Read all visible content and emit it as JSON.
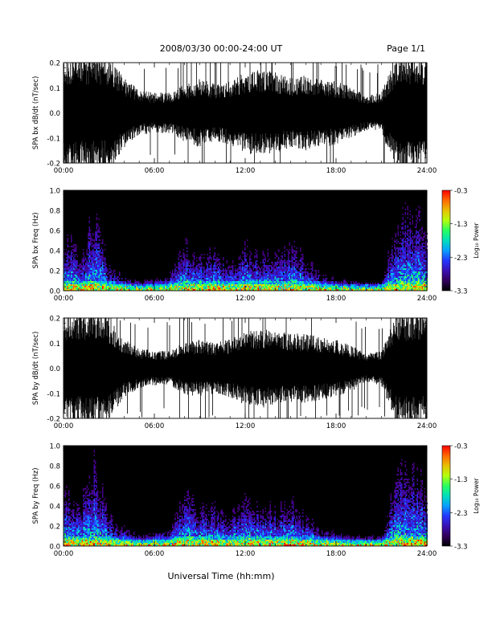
{
  "header": {
    "title": "2008/03/30   00:00-24:00 UT",
    "page": "Page 1/1"
  },
  "footer": {
    "xlabel": "Universal Time (hh:mm)"
  },
  "colors": {
    "background": "#ffffff",
    "trace": "#000000",
    "spectrogram_bg": "#000000"
  },
  "chart_data": [
    {
      "type": "line",
      "panel": "bx-waveform",
      "ylabel": "SPA bx dB/dt (nT/sec)",
      "xlim": [
        "00:00",
        "24:00"
      ],
      "x_ticks": [
        "00:00",
        "06:00",
        "12:00",
        "18:00",
        "24:00"
      ],
      "ylim": [
        -0.2,
        0.2
      ],
      "y_ticks": [
        "-0.2",
        "-0.1",
        "0.0",
        "0.1",
        "0.2"
      ],
      "x_hours": [
        0,
        1,
        2,
        3,
        4,
        5,
        6,
        7,
        8,
        9,
        10,
        11,
        12,
        13,
        14,
        15,
        16,
        17,
        18,
        19,
        20,
        21,
        22,
        23,
        24
      ],
      "amplitude": [
        0.2,
        0.2,
        0.2,
        0.2,
        0.12,
        0.08,
        0.07,
        0.07,
        0.1,
        0.12,
        0.1,
        0.11,
        0.14,
        0.15,
        0.14,
        0.12,
        0.13,
        0.12,
        0.11,
        0.09,
        0.06,
        0.07,
        0.2,
        0.2,
        0.2
      ]
    },
    {
      "type": "heatmap",
      "panel": "bx-spectrogram",
      "ylabel": "SPA bx Freq (Hz)",
      "xlim": [
        "00:00",
        "24:00"
      ],
      "x_ticks": [
        "00:00",
        "06:00",
        "12:00",
        "18:00",
        "24:00"
      ],
      "ylim": [
        0.0,
        1.0
      ],
      "y_ticks": [
        "0.0",
        "0.2",
        "0.4",
        "0.6",
        "0.8",
        "1.0"
      ],
      "colorbar": {
        "label": "Log₁₀ Power",
        "range": [
          -3.3,
          -0.3
        ],
        "ticks": [
          "-0.3",
          "-1.3",
          "-2.3",
          "-3.3"
        ]
      },
      "x_hours": [
        0,
        1,
        2,
        3,
        4,
        5,
        6,
        7,
        8,
        9,
        10,
        11,
        12,
        13,
        14,
        15,
        16,
        17,
        18,
        19,
        20,
        21,
        22,
        23,
        24
      ],
      "activity_height_hz": [
        0.75,
        0.45,
        1.0,
        0.3,
        0.15,
        0.1,
        0.12,
        0.2,
        0.6,
        0.4,
        0.5,
        0.3,
        0.55,
        0.45,
        0.4,
        0.6,
        0.35,
        0.2,
        0.12,
        0.1,
        0.08,
        0.1,
        0.9,
        0.95,
        0.8
      ]
    },
    {
      "type": "line",
      "panel": "by-waveform",
      "ylabel": "SPA by dB/dt (nT/sec)",
      "xlim": [
        "00:00",
        "24:00"
      ],
      "x_ticks": [
        "00:00",
        "06:00",
        "12:00",
        "18:00",
        "24:00"
      ],
      "ylim": [
        -0.2,
        0.2
      ],
      "y_ticks": [
        "-0.2",
        "-0.1",
        "0.0",
        "0.1",
        "0.2"
      ],
      "x_hours": [
        0,
        1,
        2,
        3,
        4,
        5,
        6,
        7,
        8,
        9,
        10,
        11,
        12,
        13,
        14,
        15,
        16,
        17,
        18,
        19,
        20,
        21,
        22,
        23,
        24
      ],
      "amplitude": [
        0.2,
        0.2,
        0.2,
        0.18,
        0.1,
        0.07,
        0.06,
        0.06,
        0.09,
        0.1,
        0.09,
        0.1,
        0.13,
        0.14,
        0.13,
        0.12,
        0.12,
        0.11,
        0.1,
        0.08,
        0.05,
        0.06,
        0.2,
        0.2,
        0.2
      ]
    },
    {
      "type": "heatmap",
      "panel": "by-spectrogram",
      "ylabel": "SPA by Freq (Hz)",
      "xlim": [
        "00:00",
        "24:00"
      ],
      "x_ticks": [
        "00:00",
        "06:00",
        "12:00",
        "18:00",
        "24:00"
      ],
      "ylim": [
        0.0,
        1.0
      ],
      "y_ticks": [
        "0.0",
        "0.2",
        "0.4",
        "0.6",
        "0.8",
        "1.0"
      ],
      "colorbar": {
        "label": "Log₁₀ Power",
        "range": [
          -3.3,
          -0.3
        ],
        "ticks": [
          "-0.3",
          "-1.3",
          "-2.3",
          "-3.3"
        ]
      },
      "x_hours": [
        0,
        1,
        2,
        3,
        4,
        5,
        6,
        7,
        8,
        9,
        10,
        11,
        12,
        13,
        14,
        15,
        16,
        17,
        18,
        19,
        20,
        21,
        22,
        23,
        24
      ],
      "activity_height_hz": [
        0.8,
        0.5,
        1.0,
        0.35,
        0.2,
        0.12,
        0.15,
        0.25,
        0.65,
        0.45,
        0.5,
        0.35,
        0.6,
        0.5,
        0.45,
        0.55,
        0.35,
        0.2,
        0.15,
        0.12,
        0.1,
        0.12,
        0.9,
        0.95,
        0.8
      ]
    }
  ]
}
